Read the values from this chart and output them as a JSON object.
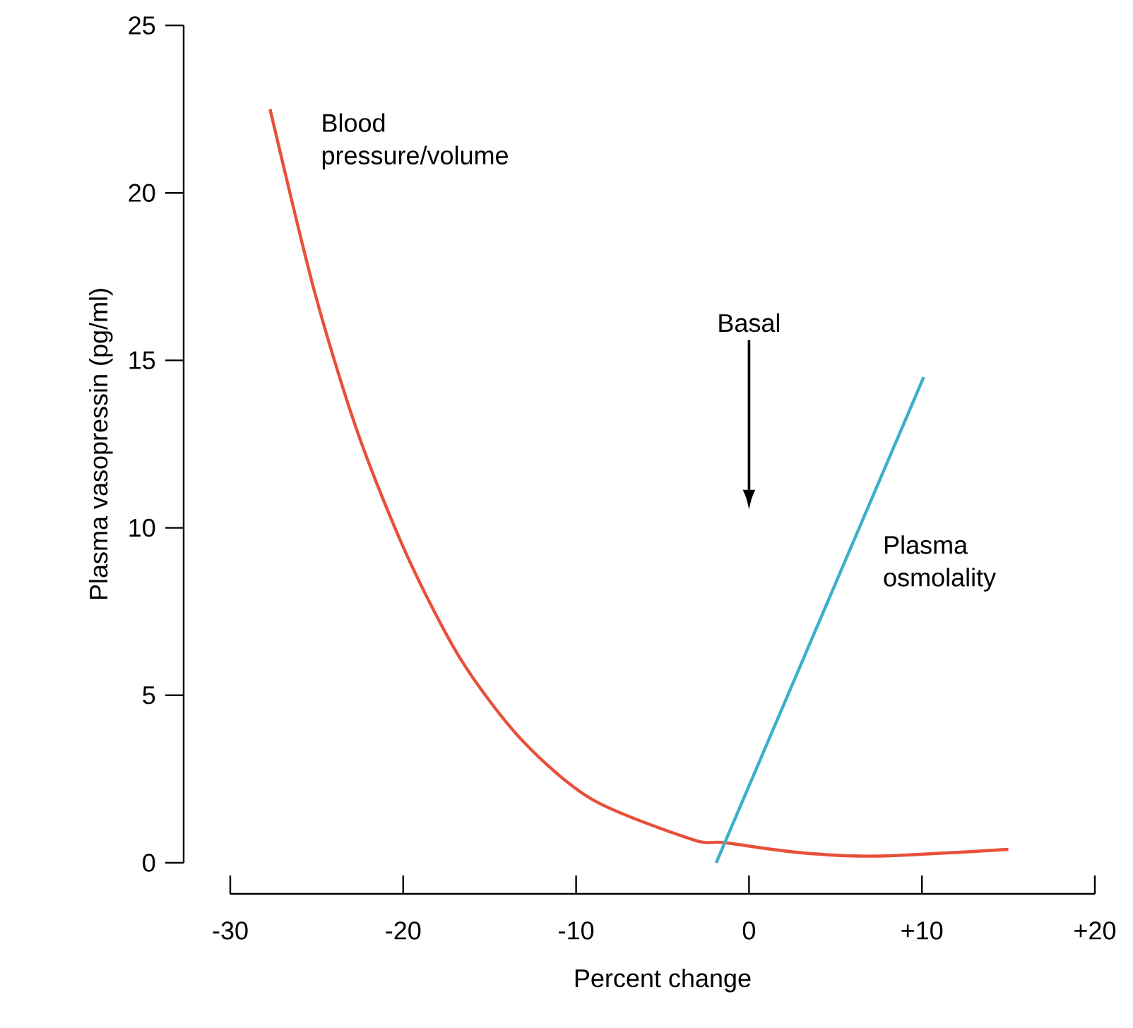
{
  "chart_data": {
    "type": "line",
    "xlabel": "Percent change",
    "ylabel": "Plasma vasopressin (pg/ml)",
    "xlim": [
      -30,
      20
    ],
    "ylim": [
      0,
      25
    ],
    "xticks": [
      -30,
      -20,
      -10,
      0,
      {
        "value": 10,
        "label": "+10"
      },
      {
        "value": 20,
        "label": "+20"
      }
    ],
    "yticks": [
      0,
      5,
      10,
      15,
      20,
      25
    ],
    "grid": false,
    "legend": false,
    "marker": "none",
    "line_style": "solid",
    "series": [
      {
        "name": "Blood pressure/volume",
        "color": "#e8503a",
        "x": [
          -27.7,
          -25.1,
          -22.6,
          -19.8,
          -16.7,
          -13.2,
          -9.1,
          -3.3,
          -1.4,
          3,
          7.3,
          15
        ],
        "values": [
          22.5,
          17,
          12.8,
          9.2,
          6.1,
          3.7,
          1.9,
          0.7,
          0.6,
          0.3,
          0.2,
          0.4
        ]
      },
      {
        "name": "Plasma osmolality",
        "color": "#3cb0c8",
        "x": [
          -1.9,
          10.1
        ],
        "values": [
          0,
          14.5
        ]
      }
    ],
    "annotations": [
      "Basal"
    ]
  }
}
